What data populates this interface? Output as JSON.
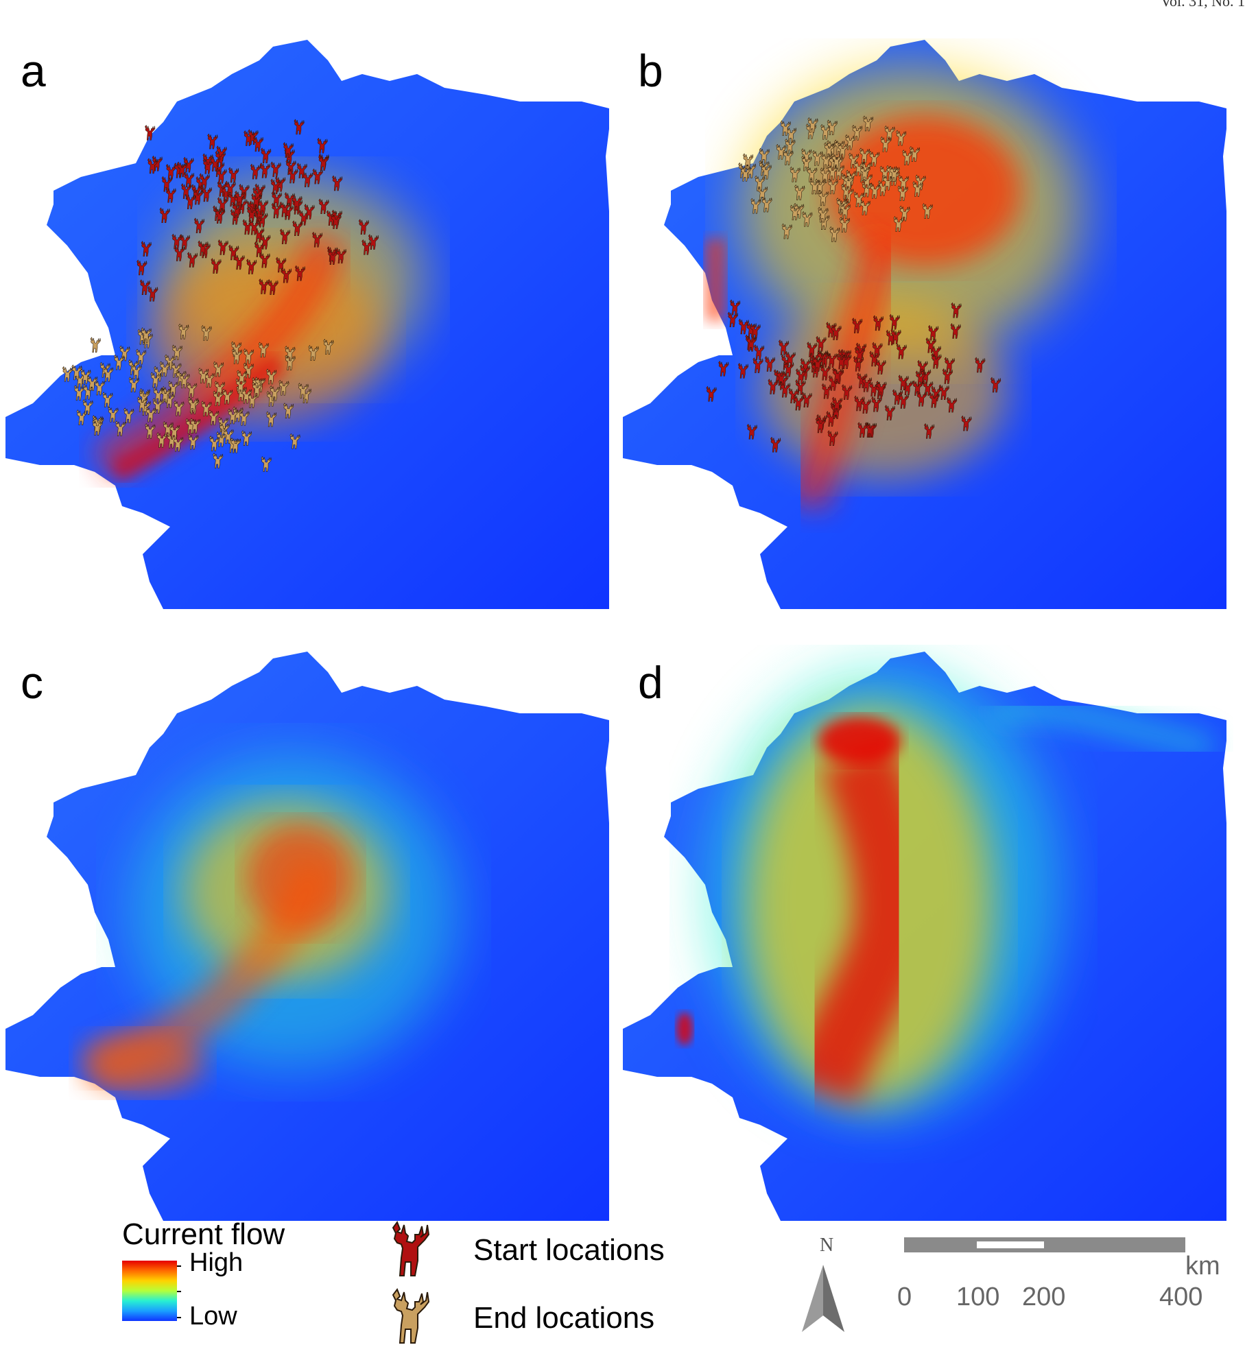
{
  "header": {
    "text": "Vol. 31, No. 1"
  },
  "panels": [
    {
      "id": "a",
      "label": "a",
      "deer_layer": "start-and-end-locations"
    },
    {
      "id": "b",
      "label": "b",
      "deer_layer": "start-and-end-locations"
    },
    {
      "id": "c",
      "label": "c",
      "deer_layer": "none"
    },
    {
      "id": "d",
      "label": "d",
      "deer_layer": "none"
    }
  ],
  "legend": {
    "title": "Current flow",
    "high_label": "High",
    "low_label": "Low",
    "ramp_colors": [
      "#e60000",
      "#ff6a00",
      "#ffd200",
      "#b5ff3a",
      "#28f0d2",
      "#1aa0ff",
      "#1034ff"
    ]
  },
  "locations": {
    "start_label": "Start locations",
    "end_label": "End locations",
    "start_color": "#b01010",
    "end_color": "#c9a060",
    "start_icon": "deer-icon",
    "end_icon": "deer-icon"
  },
  "north_arrow": {
    "letter": "N",
    "icon": "north-arrow-icon"
  },
  "scale": {
    "ticks": [
      "0",
      "100",
      "200",
      "400"
    ],
    "tick_values": [
      0,
      100,
      200,
      400
    ],
    "unit": "km"
  },
  "colors": {
    "map_low": "#1034ff",
    "map_high": "#e60000"
  }
}
